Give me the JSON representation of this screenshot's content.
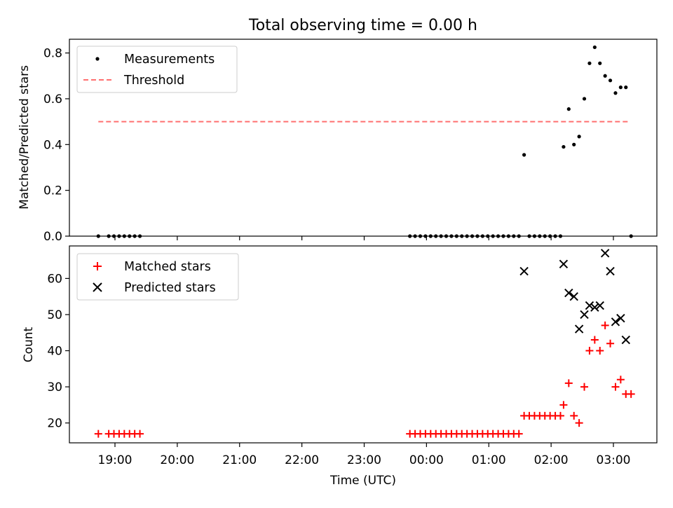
{
  "title": "Total observing time = 0.00 h",
  "x_axis": {
    "label": "Time (UTC)",
    "ticks": [
      "19:00",
      "20:00",
      "21:00",
      "22:00",
      "23:00",
      "00:00",
      "01:00",
      "02:00",
      "03:00"
    ]
  },
  "chart_data": [
    {
      "type": "scatter",
      "ylabel": "Matched/Predicted stars",
      "ylim": [
        0,
        0.86
      ],
      "yticks": [
        "0.0",
        "0.2",
        "0.4",
        "0.6",
        "0.8"
      ],
      "legend": {
        "placement": "top-left"
      },
      "series": [
        {
          "name": "Measurements",
          "marker": "dot",
          "color": "#000000",
          "x": [
            "18:44",
            "18:54",
            "18:59",
            "19:04",
            "19:09",
            "19:14",
            "19:19",
            "19:24",
            "23:44",
            "23:49",
            "23:54",
            "23:59",
            "00:04",
            "00:09",
            "00:14",
            "00:19",
            "00:24",
            "00:29",
            "00:34",
            "00:39",
            "00:44",
            "00:49",
            "00:54",
            "00:59",
            "01:04",
            "01:09",
            "01:14",
            "01:19",
            "01:24",
            "01:29",
            "01:34",
            "01:39",
            "01:44",
            "01:49",
            "01:54",
            "01:59",
            "02:04",
            "02:09",
            "02:12",
            "02:17",
            "02:22",
            "02:27",
            "02:32",
            "02:37",
            "02:42",
            "02:47",
            "02:52",
            "02:57",
            "03:02",
            "03:07",
            "03:12",
            "03:17"
          ],
          "y": [
            0,
            0,
            0,
            0,
            0,
            0,
            0,
            0,
            0,
            0,
            0,
            0,
            0,
            0,
            0,
            0,
            0,
            0,
            0,
            0,
            0,
            0,
            0,
            0,
            0,
            0,
            0,
            0,
            0,
            0,
            0.355,
            0,
            0,
            0,
            0,
            0,
            0,
            0,
            0.39,
            0.555,
            0.4,
            0.435,
            0.6,
            0.755,
            0.825,
            0.755,
            0.7,
            0.68,
            0.625,
            0.65,
            0.65,
            0
          ]
        },
        {
          "name": "Threshold",
          "marker": "dashed-line",
          "color": "#ff7070",
          "x": [
            "18:44",
            "03:14"
          ],
          "y": [
            0.5,
            0.5
          ]
        }
      ]
    },
    {
      "type": "scatter",
      "ylabel": "Count",
      "ylim": [
        14.5,
        69
      ],
      "yticks": [
        "20",
        "30",
        "40",
        "50",
        "60"
      ],
      "legend": {
        "placement": "top-left"
      },
      "series": [
        {
          "name": "Matched stars",
          "marker": "plus",
          "color": "#ff0000",
          "x": [
            "18:44",
            "18:54",
            "18:59",
            "19:04",
            "19:09",
            "19:14",
            "19:19",
            "19:24",
            "23:44",
            "23:49",
            "23:54",
            "23:59",
            "00:04",
            "00:09",
            "00:14",
            "00:19",
            "00:24",
            "00:29",
            "00:34",
            "00:39",
            "00:44",
            "00:49",
            "00:54",
            "00:59",
            "01:04",
            "01:09",
            "01:14",
            "01:19",
            "01:24",
            "01:29",
            "01:34",
            "01:39",
            "01:44",
            "01:49",
            "01:54",
            "01:59",
            "02:04",
            "02:09",
            "02:12",
            "02:17",
            "02:22",
            "02:27",
            "02:32",
            "02:37",
            "02:42",
            "02:47",
            "02:52",
            "02:57",
            "03:02",
            "03:07",
            "03:12",
            "03:17"
          ],
          "y": [
            17,
            17,
            17,
            17,
            17,
            17,
            17,
            17,
            17,
            17,
            17,
            17,
            17,
            17,
            17,
            17,
            17,
            17,
            17,
            17,
            17,
            17,
            17,
            17,
            17,
            17,
            17,
            17,
            17,
            17,
            22,
            22,
            22,
            22,
            22,
            22,
            22,
            22,
            25,
            31,
            22,
            20,
            30,
            40,
            43,
            40,
            47,
            42,
            30,
            32,
            28,
            28
          ]
        },
        {
          "name": "Predicted stars",
          "marker": "x",
          "color": "#000000",
          "x": [
            "01:34",
            "02:12",
            "02:17",
            "02:22",
            "02:27",
            "02:32",
            "02:37",
            "02:42",
            "02:47",
            "02:52",
            "02:57",
            "03:02",
            "03:07",
            "03:12"
          ],
          "y": [
            62,
            64,
            56,
            55,
            46,
            50,
            52.5,
            52,
            52.5,
            67,
            62,
            48,
            49,
            43
          ]
        }
      ]
    }
  ]
}
